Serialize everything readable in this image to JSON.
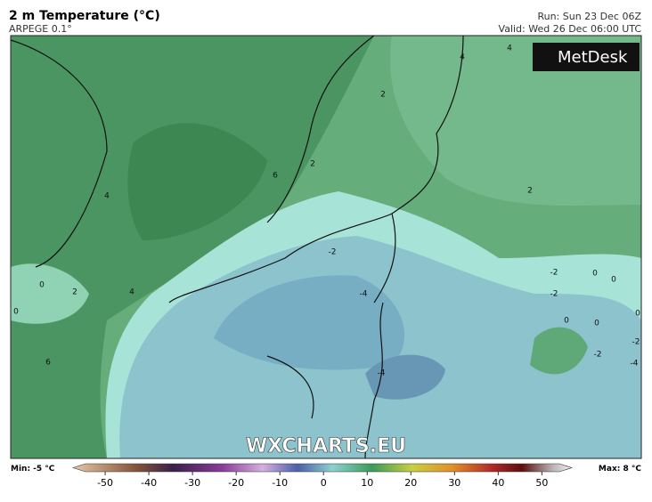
{
  "header": {
    "title": "2 m Temperature (°C)",
    "model": "ARPEGE 0.1°",
    "run": "Run: Sun 23 Dec 06Z",
    "valid": "Valid: Wed 26 Dec 06:00 UTC"
  },
  "logo": "MetDesk",
  "watermark": "WXCHARTS.EU",
  "contour_labels": [
    4,
    2,
    0,
    0,
    4,
    6,
    6,
    2,
    2,
    4,
    4,
    2,
    -2,
    -4,
    -4,
    -2,
    -2,
    0,
    0,
    0,
    0,
    -2,
    -2,
    -4,
    0
  ],
  "colorbar": {
    "min_label": "Min: -5 °C",
    "max_label": "Max: 8 °C",
    "lim": [
      -54.5,
      54
    ],
    "ticks": [
      -50,
      -40,
      -30,
      -20,
      -10,
      0,
      10,
      20,
      30,
      40,
      50
    ]
  }
}
